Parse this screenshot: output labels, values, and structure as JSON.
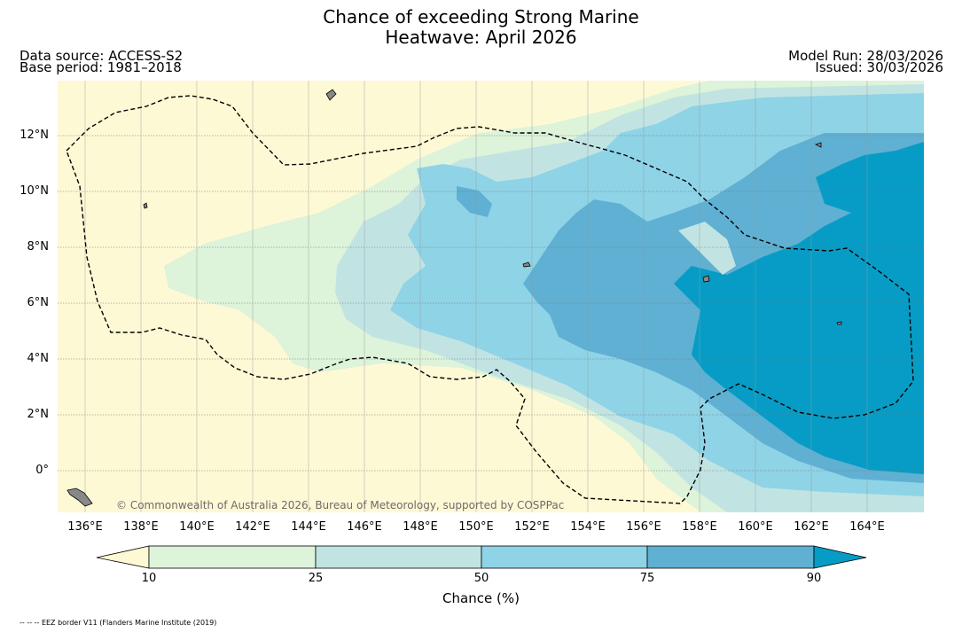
{
  "header": {
    "title_line1": "Chance of exceeding Strong Marine",
    "title_line2": "Heatwave: April 2026",
    "data_source": "Data source: ACCESS-S2",
    "base_period": "Base period: 1981–2018",
    "model_run": "Model Run: 28/03/2026",
    "issued": "Issued: 30/03/2026"
  },
  "map": {
    "lat_labels": [
      "12°N",
      "10°N",
      "8°N",
      "6°N",
      "4°N",
      "2°N",
      "0°"
    ],
    "lon_labels": [
      "136°E",
      "138°E",
      "140°E",
      "142°E",
      "144°E",
      "146°E",
      "148°E",
      "150°E",
      "152°E",
      "154°E",
      "156°E",
      "158°E",
      "160°E",
      "162°E",
      "164°E"
    ],
    "copyright": "© Commonwealth of Australia 2026, Bureau of Meteorology, supported by COSPPac"
  },
  "colorbar": {
    "ticks": [
      "10",
      "25",
      "50",
      "75",
      "90"
    ],
    "label": "Chance (%)",
    "colors": {
      "below_10": "#fef9d5",
      "c10_25": "#ddf3da",
      "c25_50": "#c1e4e3",
      "c50_75": "#8fd3e7",
      "c75_90": "#5fb0d2",
      "above_90": "#079cc6"
    }
  },
  "footnote": "-- -- -- EEZ border V11 (Flanders Marine Institute (2019)"
}
